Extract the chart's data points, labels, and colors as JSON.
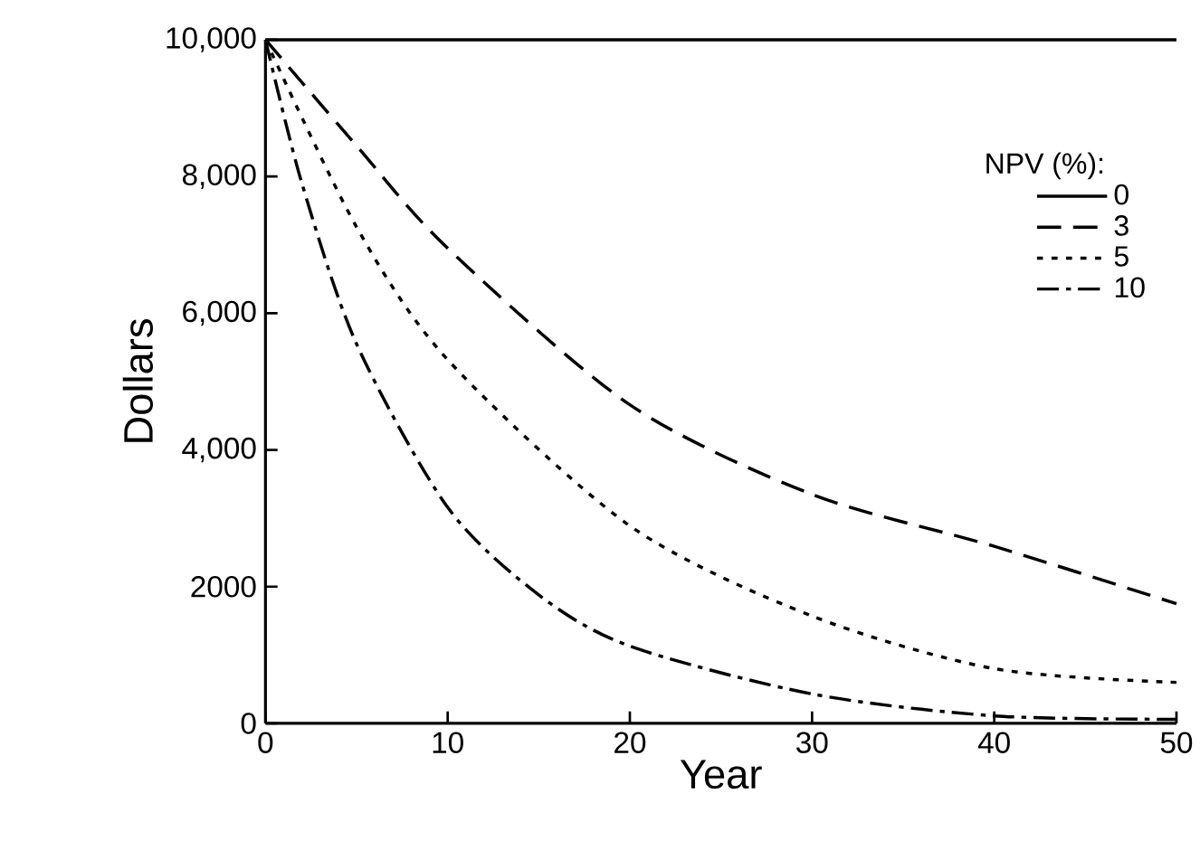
{
  "chart_data": {
    "type": "line",
    "xlabel": "Year",
    "ylabel": "Dollars",
    "legend_title": "NPV (%):",
    "legend": "top right",
    "xlim": [
      0,
      50
    ],
    "xticks": [
      0,
      10,
      20,
      30,
      40,
      50
    ],
    "ylim": [
      0,
      10000
    ],
    "yticks": [
      0,
      2000,
      {
        "value": 4000,
        "label": "4,000"
      },
      {
        "value": 6000,
        "label": "6,000"
      },
      {
        "value": 8000,
        "label": "8,000"
      },
      {
        "value": 10000,
        "label": "10,000"
      }
    ],
    "grid": false,
    "series": [
      {
        "name": "0",
        "color": "#000000",
        "line_style": "solid",
        "x": [
          0,
          50
        ],
        "values": [
          10000,
          10000
        ]
      },
      {
        "name": "3",
        "color": "#000000",
        "line_style": "dashed",
        "x": [
          0,
          5,
          10,
          20,
          30,
          40,
          50
        ],
        "values": [
          10000,
          8450,
          6950,
          4660,
          3350,
          2590,
          1750
        ]
      },
      {
        "name": "5",
        "color": "#000000",
        "line_style": "dotted",
        "x": [
          0,
          5,
          10,
          20,
          30,
          40,
          50
        ],
        "values": [
          10000,
          7260,
          5320,
          2890,
          1570,
          800,
          600
        ]
      },
      {
        "name": "10",
        "color": "#000000",
        "line_style": "dashdot",
        "x": [
          0,
          2,
          5,
          10,
          15,
          20,
          30,
          40,
          50
        ],
        "values": [
          10000,
          7900,
          5550,
          3160,
          1880,
          1130,
          430,
          110,
          60
        ]
      }
    ]
  }
}
